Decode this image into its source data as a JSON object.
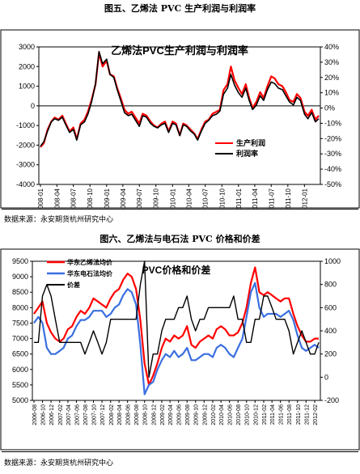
{
  "figure1": {
    "caption": "图五、乙烯法 PVC 生产利润与利润率",
    "source": "数据来源：永安期货杭州研究中心"
  },
  "figure2": {
    "caption": "图六、乙烯法与电石法 PVC 价格和价差",
    "source": "数据来源：永安期货杭州研究中心"
  },
  "colors": {
    "profit": "#ff0000",
    "margin": "#000000",
    "ethylene": "#ff0000",
    "carbide": "#3a6fe0",
    "spread": "#000000"
  },
  "chart_data": [
    {
      "type": "line",
      "title": "乙烯法PVC生产利润与利润率",
      "xlabel": "",
      "ylabel": "",
      "x_ticks": [
        "2008-01",
        "2008-04",
        "2008-07",
        "2008-10",
        "2009-01",
        "2009-04",
        "2009-07",
        "2009-10",
        "2010-01",
        "2010-04",
        "2010-07",
        "2010-10",
        "2011-01",
        "2011-04",
        "2011-07",
        "2011-10",
        "2012-01"
      ],
      "y_left": {
        "lim": [
          -4000,
          3000
        ],
        "ticks": [
          -4000,
          -3000,
          -2000,
          -1000,
          0,
          1000,
          2000,
          3000
        ]
      },
      "y_right": {
        "lim": [
          -50,
          40
        ],
        "ticks": [
          "-50%",
          "-40%",
          "-30%",
          "-20%",
          "-10%",
          "0%",
          "10%",
          "20%",
          "30%",
          "40%"
        ]
      },
      "grid": false,
      "legend": "lower-right",
      "series": [
        {
          "name": "生产利润",
          "axis": "left",
          "color": "#ff0000",
          "x": [
            "2008-01-01",
            "2008-01-20",
            "2008-02-10",
            "2008-03-01",
            "2008-03-20",
            "2008-04-10",
            "2008-05-01",
            "2008-05-20",
            "2008-06-10",
            "2008-07-01",
            "2008-07-20",
            "2008-08-10",
            "2008-09-01",
            "2008-09-20",
            "2008-10-10",
            "2008-11-01",
            "2008-11-20",
            "2008-12-10",
            "2009-01-01",
            "2009-01-20",
            "2009-02-10",
            "2009-03-01",
            "2009-03-20",
            "2009-04-10",
            "2009-05-01",
            "2009-05-20",
            "2009-06-10",
            "2009-07-01",
            "2009-07-20",
            "2009-08-10",
            "2009-09-01",
            "2009-09-20",
            "2009-10-10",
            "2009-11-01",
            "2009-11-20",
            "2009-12-10",
            "2010-01-01",
            "2010-01-20",
            "2010-02-10",
            "2010-03-01",
            "2010-03-20",
            "2010-04-10",
            "2010-05-01",
            "2010-05-20",
            "2010-06-10",
            "2010-07-01",
            "2010-07-20",
            "2010-08-10",
            "2010-09-01",
            "2010-09-20",
            "2010-10-10",
            "2010-11-01",
            "2010-11-20",
            "2010-12-10",
            "2011-01-01",
            "2011-01-20",
            "2011-02-10",
            "2011-03-01",
            "2011-03-20",
            "2011-04-10",
            "2011-05-01",
            "2011-05-20",
            "2011-06-10",
            "2011-07-01",
            "2011-07-20",
            "2011-08-10",
            "2011-09-01",
            "2011-09-20",
            "2011-10-10",
            "2011-11-01",
            "2011-11-20",
            "2011-12-10",
            "2012-01-01",
            "2012-01-20",
            "2012-02-10",
            "2012-03-01",
            "2012-03-20"
          ],
          "values": [
            -2100,
            -1900,
            -1200,
            -800,
            -600,
            -700,
            -500,
            -900,
            -1300,
            -1100,
            -1700,
            -900,
            -700,
            -300,
            300,
            1100,
            2700,
            2000,
            2300,
            1600,
            1500,
            900,
            400,
            -200,
            -400,
            -300,
            -600,
            -900,
            -400,
            -500,
            -800,
            -1000,
            -1100,
            -900,
            -800,
            -1300,
            -800,
            -900,
            -1500,
            -900,
            -1000,
            -1200,
            -1400,
            -1700,
            -1200,
            -800,
            -700,
            -400,
            -300,
            -200,
            800,
            1100,
            2000,
            1300,
            900,
            600,
            1100,
            400,
            -100,
            200,
            700,
            400,
            1000,
            1500,
            1400,
            1100,
            1000,
            700,
            300,
            200,
            600,
            400,
            -300,
            -500,
            -200,
            -700,
            -500
          ]
        },
        {
          "name": "利润率",
          "axis": "right",
          "color": "#000000",
          "x": [
            "2008-01-01",
            "2008-01-20",
            "2008-02-10",
            "2008-03-01",
            "2008-03-20",
            "2008-04-10",
            "2008-05-01",
            "2008-05-20",
            "2008-06-10",
            "2008-07-01",
            "2008-07-20",
            "2008-08-10",
            "2008-09-01",
            "2008-09-20",
            "2008-10-10",
            "2008-11-01",
            "2008-11-20",
            "2008-12-10",
            "2009-01-01",
            "2009-01-20",
            "2009-02-10",
            "2009-03-01",
            "2009-03-20",
            "2009-04-10",
            "2009-05-01",
            "2009-05-20",
            "2009-06-10",
            "2009-07-01",
            "2009-07-20",
            "2009-08-10",
            "2009-09-01",
            "2009-09-20",
            "2009-10-10",
            "2009-11-01",
            "2009-11-20",
            "2009-12-10",
            "2010-01-01",
            "2010-01-20",
            "2010-02-10",
            "2010-03-01",
            "2010-03-20",
            "2010-04-10",
            "2010-05-01",
            "2010-05-20",
            "2010-06-10",
            "2010-07-01",
            "2010-07-20",
            "2010-08-10",
            "2010-09-01",
            "2010-09-20",
            "2010-10-10",
            "2010-11-01",
            "2010-11-20",
            "2010-12-10",
            "2011-01-01",
            "2011-01-20",
            "2011-02-10",
            "2011-03-01",
            "2011-03-20",
            "2011-04-10",
            "2011-05-01",
            "2011-05-20",
            "2011-06-10",
            "2011-07-01",
            "2011-07-20",
            "2011-08-10",
            "2011-09-01",
            "2011-09-20",
            "2011-10-10",
            "2011-11-01",
            "2011-11-20",
            "2011-12-10",
            "2012-01-01",
            "2012-01-20",
            "2012-02-10",
            "2012-03-01",
            "2012-03-20"
          ],
          "values": [
            -25,
            -22,
            -15,
            -9,
            -7,
            -8,
            -6,
            -11,
            -16,
            -14,
            -21,
            -11,
            -9,
            -4,
            4,
            16,
            37,
            29,
            32,
            22,
            20,
            12,
            5,
            -3,
            -5,
            -4,
            -8,
            -12,
            -5,
            -6,
            -10,
            -12,
            -13,
            -11,
            -10,
            -16,
            -10,
            -11,
            -18,
            -11,
            -12,
            -15,
            -17,
            -21,
            -15,
            -10,
            -8,
            -5,
            -4,
            -2,
            9,
            13,
            22,
            15,
            10,
            7,
            13,
            5,
            -1,
            2,
            8,
            5,
            12,
            17,
            16,
            13,
            12,
            8,
            4,
            2,
            7,
            5,
            -4,
            -7,
            -3,
            -9,
            -7
          ]
        }
      ]
    },
    {
      "type": "line",
      "title": "PVC价格和价差",
      "xlabel": "",
      "ylabel": "",
      "x_ticks": [
        "2006-08",
        "2006-10",
        "2006-12",
        "2007-02",
        "2007-04",
        "2007-06",
        "2007-08",
        "2007-10",
        "2007-12",
        "2008-02",
        "2008-04",
        "2008-06",
        "2008-08",
        "2008-10",
        "2008-12",
        "2009-02",
        "2009-04",
        "2009-06",
        "2009-08",
        "2009-10",
        "2009-12",
        "2010-02",
        "2010-04",
        "2010-06",
        "2010-08",
        "2010-10",
        "2010-12",
        "2011-02",
        "2011-04",
        "2011-06",
        "2011-08",
        "2011-10",
        "2011-12",
        "2012-02"
      ],
      "y_left": {
        "lim": [
          5000,
          9500
        ],
        "ticks": [
          5000,
          5500,
          6000,
          6500,
          7000,
          7500,
          8000,
          8500,
          9000,
          9500
        ]
      },
      "y_right": {
        "lim": [
          -200,
          1000
        ],
        "ticks": [
          -200,
          0,
          200,
          400,
          600,
          800,
          1000
        ]
      },
      "grid": false,
      "legend": "top-left",
      "series": [
        {
          "name": "华东乙烯法均价",
          "axis": "left",
          "color": "#ff0000",
          "x": [
            "2006-08-01",
            "2006-09-01",
            "2006-10-01",
            "2006-11-01",
            "2006-12-01",
            "2007-01-01",
            "2007-02-01",
            "2007-03-01",
            "2007-04-01",
            "2007-05-01",
            "2007-06-01",
            "2007-07-01",
            "2007-08-01",
            "2007-09-01",
            "2007-10-01",
            "2007-11-01",
            "2007-12-01",
            "2008-01-01",
            "2008-02-01",
            "2008-03-01",
            "2008-04-01",
            "2008-05-01",
            "2008-06-01",
            "2008-07-01",
            "2008-08-01",
            "2008-09-01",
            "2008-10-01",
            "2008-11-01",
            "2008-12-01",
            "2009-01-01",
            "2009-02-01",
            "2009-03-01",
            "2009-04-01",
            "2009-05-01",
            "2009-06-01",
            "2009-07-01",
            "2009-08-01",
            "2009-09-01",
            "2009-10-01",
            "2009-11-01",
            "2009-12-01",
            "2010-01-01",
            "2010-02-01",
            "2010-03-01",
            "2010-04-01",
            "2010-05-01",
            "2010-06-01",
            "2010-07-01",
            "2010-08-01",
            "2010-09-01",
            "2010-10-01",
            "2010-11-01",
            "2010-12-01",
            "2011-01-01",
            "2011-02-01",
            "2011-03-01",
            "2011-04-01",
            "2011-05-01",
            "2011-06-01",
            "2011-07-01",
            "2011-08-01",
            "2011-09-01",
            "2011-10-01",
            "2011-11-01",
            "2011-12-01",
            "2012-01-01",
            "2012-02-01",
            "2012-03-01"
          ],
          "values": [
            7800,
            8000,
            8200,
            7500,
            7200,
            7000,
            6900,
            7000,
            7300,
            7400,
            7700,
            7900,
            7800,
            8000,
            8300,
            8200,
            8100,
            8000,
            8300,
            8500,
            8600,
            8900,
            9100,
            9000,
            8600,
            7600,
            6200,
            5500,
            5800,
            6200,
            6700,
            7000,
            6900,
            7100,
            7000,
            7100,
            7400,
            6800,
            6700,
            6900,
            7000,
            7100,
            7000,
            7300,
            7400,
            7300,
            7100,
            7100,
            7200,
            7500,
            8000,
            8800,
            9300,
            8500,
            8400,
            8500,
            8400,
            8300,
            8200,
            8300,
            8300,
            7800,
            7400,
            7100,
            6900,
            6900,
            7000,
            7000
          ]
        },
        {
          "name": "华东电石法均价",
          "axis": "left",
          "color": "#3a6fe0",
          "x": [
            "2006-08-01",
            "2006-09-01",
            "2006-10-01",
            "2006-11-01",
            "2006-12-01",
            "2007-01-01",
            "2007-02-01",
            "2007-03-01",
            "2007-04-01",
            "2007-05-01",
            "2007-06-01",
            "2007-07-01",
            "2007-08-01",
            "2007-09-01",
            "2007-10-01",
            "2007-11-01",
            "2007-12-01",
            "2008-01-01",
            "2008-02-01",
            "2008-03-01",
            "2008-04-01",
            "2008-05-01",
            "2008-06-01",
            "2008-07-01",
            "2008-08-01",
            "2008-09-01",
            "2008-10-01",
            "2008-11-01",
            "2008-12-01",
            "2009-01-01",
            "2009-02-01",
            "2009-03-01",
            "2009-04-01",
            "2009-05-01",
            "2009-06-01",
            "2009-07-01",
            "2009-08-01",
            "2009-09-01",
            "2009-10-01",
            "2009-11-01",
            "2009-12-01",
            "2010-01-01",
            "2010-02-01",
            "2010-03-01",
            "2010-04-01",
            "2010-05-01",
            "2010-06-01",
            "2010-07-01",
            "2010-08-01",
            "2010-09-01",
            "2010-10-01",
            "2010-11-01",
            "2010-12-01",
            "2011-01-01",
            "2011-02-01",
            "2011-03-01",
            "2011-04-01",
            "2011-05-01",
            "2011-06-01",
            "2011-07-01",
            "2011-08-01",
            "2011-09-01",
            "2011-10-01",
            "2011-11-01",
            "2011-12-01",
            "2012-01-01",
            "2012-02-01",
            "2012-03-01"
          ],
          "values": [
            7500,
            7700,
            7500,
            6700,
            6500,
            6500,
            6600,
            6700,
            7000,
            7100,
            7400,
            7600,
            7600,
            7700,
            7900,
            7900,
            7900,
            7700,
            7800,
            8000,
            8100,
            8400,
            8600,
            8500,
            8100,
            6800,
            5200,
            5500,
            5600,
            6000,
            6300,
            6500,
            6400,
            6600,
            6400,
            6500,
            6700,
            6300,
            6300,
            6400,
            6500,
            6500,
            6400,
            6700,
            6800,
            6700,
            6500,
            6400,
            6700,
            7000,
            7700,
            8500,
            8800,
            8000,
            7700,
            7800,
            7800,
            7800,
            7700,
            7800,
            7900,
            7600,
            7100,
            6700,
            6600,
            6700,
            6800,
            6700
          ]
        },
        {
          "name": "价差",
          "axis": "right",
          "color": "#000000",
          "x": [
            "2006-08-01",
            "2006-09-01",
            "2006-10-01",
            "2006-11-01",
            "2006-12-01",
            "2007-01-01",
            "2007-02-01",
            "2007-03-01",
            "2007-04-01",
            "2007-05-01",
            "2007-06-01",
            "2007-07-01",
            "2007-08-01",
            "2007-09-01",
            "2007-10-01",
            "2007-11-01",
            "2007-12-01",
            "2008-01-01",
            "2008-02-01",
            "2008-03-01",
            "2008-04-01",
            "2008-05-01",
            "2008-06-01",
            "2008-07-01",
            "2008-08-01",
            "2008-09-01",
            "2008-10-01",
            "2008-11-01",
            "2008-12-01",
            "2009-01-01",
            "2009-02-01",
            "2009-03-01",
            "2009-04-01",
            "2009-05-01",
            "2009-06-01",
            "2009-07-01",
            "2009-08-01",
            "2009-09-01",
            "2009-10-01",
            "2009-11-01",
            "2009-12-01",
            "2010-01-01",
            "2010-02-01",
            "2010-03-01",
            "2010-04-01",
            "2010-05-01",
            "2010-06-01",
            "2010-07-01",
            "2010-08-01",
            "2010-09-01",
            "2010-10-01",
            "2010-11-01",
            "2010-12-01",
            "2011-01-01",
            "2011-02-01",
            "2011-03-01",
            "2011-04-01",
            "2011-05-01",
            "2011-06-01",
            "2011-07-01",
            "2011-08-01",
            "2011-09-01",
            "2011-10-01",
            "2011-11-01",
            "2011-12-01",
            "2012-01-01",
            "2012-02-01",
            "2012-03-01"
          ],
          "values": [
            300,
            300,
            700,
            800,
            700,
            500,
            300,
            300,
            300,
            300,
            300,
            300,
            200,
            300,
            400,
            300,
            200,
            300,
            500,
            500,
            500,
            500,
            500,
            500,
            500,
            800,
            1000,
            0,
            200,
            200,
            400,
            500,
            500,
            500,
            600,
            600,
            700,
            500,
            400,
            500,
            500,
            600,
            600,
            600,
            600,
            600,
            600,
            700,
            500,
            500,
            300,
            300,
            500,
            500,
            700,
            700,
            600,
            500,
            500,
            500,
            400,
            200,
            300,
            400,
            300,
            200,
            200,
            300
          ]
        }
      ]
    }
  ]
}
